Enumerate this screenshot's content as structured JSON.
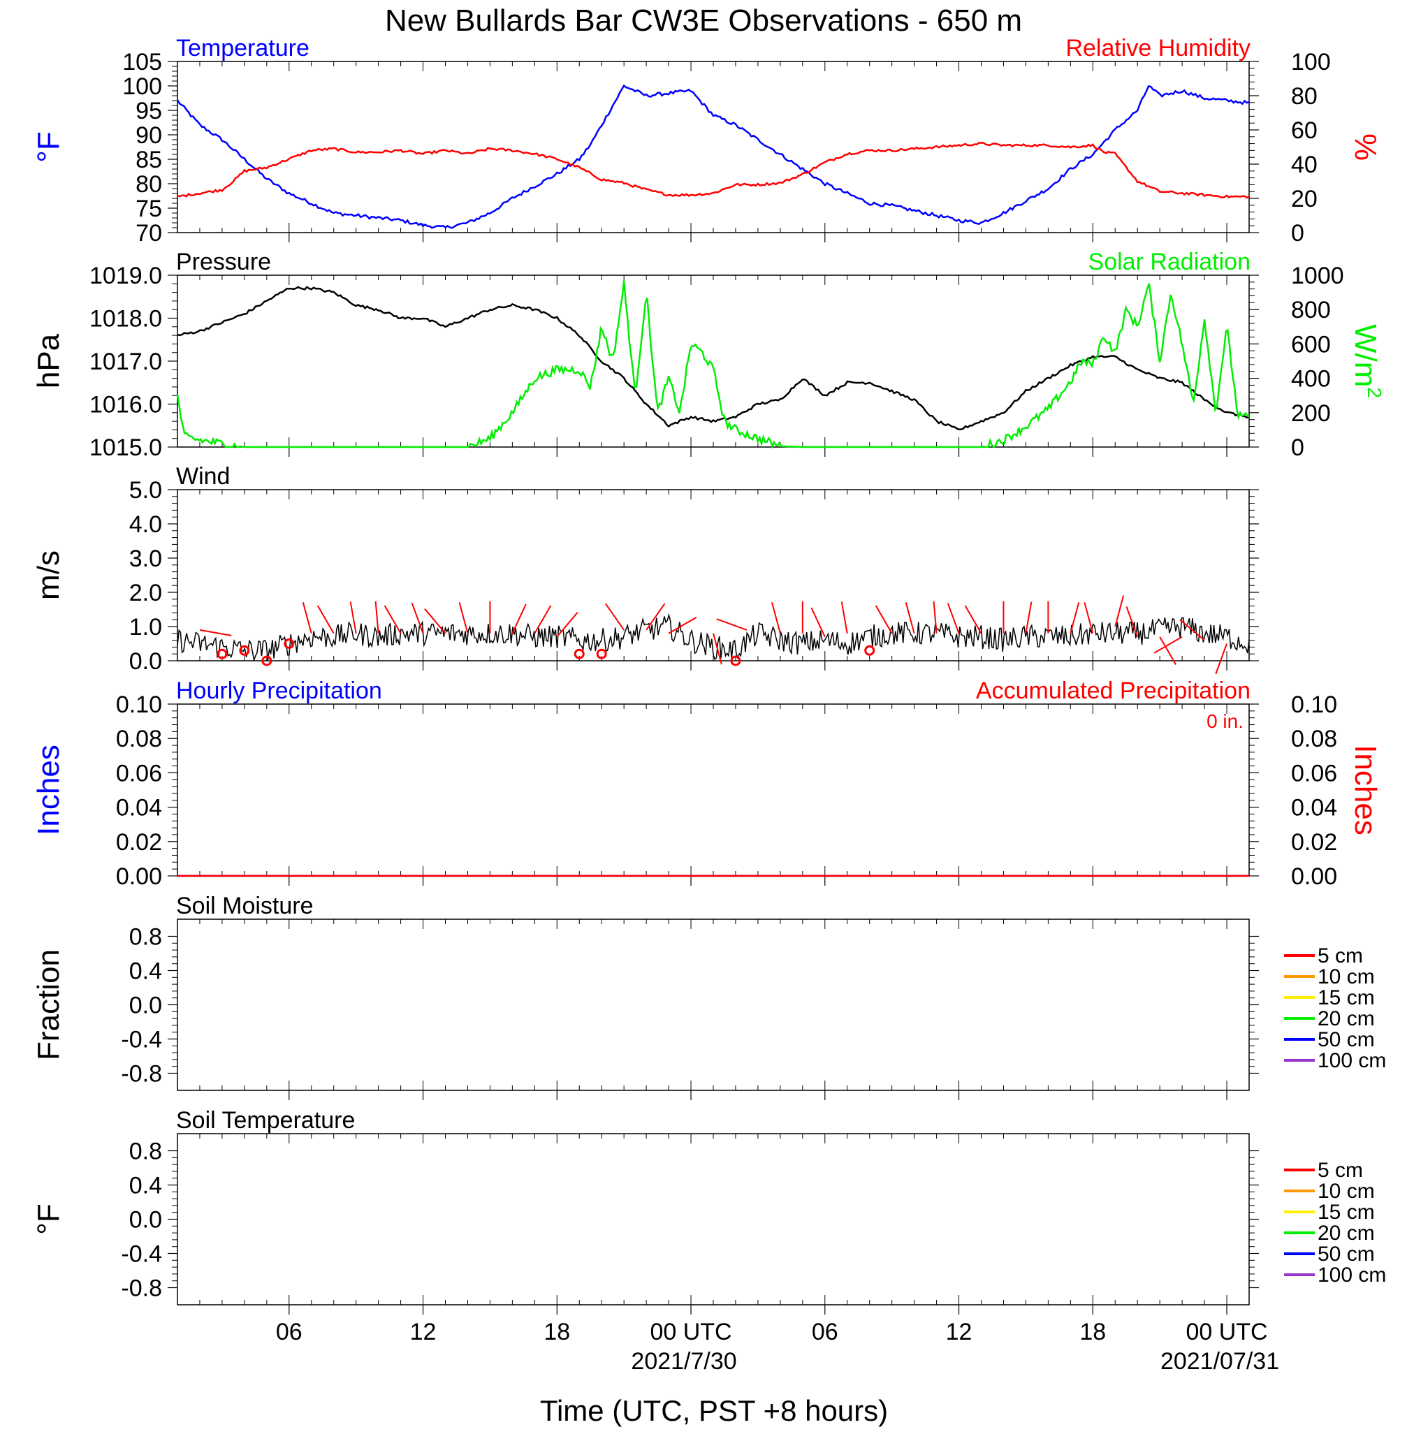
{
  "title": "New Bullards Bar CW3E Observations - 650 m",
  "xlabel": "Time (UTC, PST +8 hours)",
  "colors": {
    "temperature": "#0000ff",
    "humidity": "#ff0000",
    "pressure": "#000000",
    "solar": "#00ee00",
    "wind_speed": "#000000",
    "wind_barb": "#ff0000",
    "precip_hourly": "#0000ff",
    "precip_accum": "#ff0000"
  },
  "x_axis": {
    "range_hours": [
      0,
      48
    ],
    "tick_labels": [
      {
        "hour": 5,
        "label": "06"
      },
      {
        "hour": 11,
        "label": "12"
      },
      {
        "hour": 17,
        "label": "18"
      },
      {
        "hour": 23,
        "label": "00 UTC",
        "sublabel": "2021/7/30"
      },
      {
        "hour": 29,
        "label": "06"
      },
      {
        "hour": 35,
        "label": "12"
      },
      {
        "hour": 41,
        "label": "18"
      },
      {
        "hour": 47,
        "label": "00 UTC",
        "sublabel": "2021/07/31"
      }
    ]
  },
  "chart_data": [
    {
      "type": "line",
      "panel": "temperature_humidity",
      "title_left": "Temperature",
      "title_right": "Relative Humidity",
      "ylabel_left": "°F",
      "ylabel_right": "%",
      "ylim_left": [
        70,
        105
      ],
      "yticks_left": [
        "105",
        "100",
        "95",
        "90",
        "85",
        "80",
        "75",
        "70"
      ],
      "ylim_right": [
        0,
        100
      ],
      "yticks_right": [
        "100",
        "80",
        "60",
        "40",
        "20",
        "0"
      ],
      "series": [
        {
          "name": "Temperature",
          "axis": "left",
          "color": "#0000ff",
          "x": [
            0,
            1,
            2,
            3,
            4,
            5,
            6,
            7,
            8,
            9,
            10,
            11,
            12,
            13,
            14,
            15,
            16,
            17,
            18,
            18.5,
            19,
            19.5,
            20,
            21,
            22,
            23,
            24,
            25,
            26,
            27,
            28,
            29,
            30,
            31,
            32,
            33,
            34,
            35,
            36,
            37,
            38,
            39,
            40,
            41,
            42,
            43,
            43.5,
            44,
            45,
            46,
            47,
            48
          ],
          "y": [
            97,
            92,
            89,
            85,
            81,
            78,
            76,
            74,
            73.5,
            73,
            72.5,
            71.5,
            71,
            72,
            74,
            77,
            79.5,
            82,
            85,
            88,
            92,
            96,
            100,
            98,
            98.5,
            99,
            94,
            92,
            89,
            86,
            83,
            80,
            78,
            76,
            75.5,
            74.5,
            73.5,
            72.5,
            72,
            74,
            76.5,
            79,
            83,
            86,
            91,
            95,
            100,
            98,
            99,
            97.5,
            97,
            96.5
          ]
        },
        {
          "name": "Relative Humidity",
          "axis": "right",
          "color": "#ff0000",
          "x": [
            0,
            1,
            2,
            2.5,
            3,
            4,
            5,
            6,
            7,
            8,
            9,
            10,
            11,
            12,
            13,
            14,
            15,
            16,
            17,
            18,
            19,
            20,
            21,
            22,
            23,
            24,
            25,
            26,
            27,
            28,
            29,
            30,
            31,
            32,
            33,
            34,
            35,
            36,
            37,
            38,
            39,
            40,
            41,
            41.5,
            42,
            43,
            44,
            45,
            46,
            47,
            48
          ],
          "y": [
            21,
            23,
            25,
            30,
            36,
            38,
            43,
            48,
            49,
            47,
            47,
            48,
            46,
            48,
            46,
            49,
            48,
            46,
            43,
            38,
            31,
            29,
            25,
            22,
            22,
            23,
            28,
            28,
            29,
            34,
            41,
            46,
            48,
            48,
            49,
            50,
            51,
            52,
            51,
            51,
            51,
            50,
            51,
            47,
            46,
            30,
            24,
            23,
            22,
            21,
            21
          ]
        }
      ]
    },
    {
      "type": "line",
      "panel": "pressure_solar",
      "title_left": "Pressure",
      "title_right": "Solar Radiation",
      "ylabel_left": "hPa",
      "ylabel_right": "W/m",
      "ylabel_right_sup": "2",
      "ylim_left": [
        1015.0,
        1019.0
      ],
      "yticks_left": [
        "1019.0",
        "1018.0",
        "1017.0",
        "1016.0",
        "1015.0"
      ],
      "ylim_right": [
        0,
        1000
      ],
      "yticks_right": [
        "1000",
        "800",
        "600",
        "400",
        "200",
        "0"
      ],
      "series": [
        {
          "name": "Pressure",
          "axis": "left",
          "color": "#000000",
          "x": [
            0,
            1,
            2,
            3,
            4,
            5,
            6,
            7,
            8,
            9,
            10,
            11,
            12,
            13,
            14,
            15,
            16,
            17,
            18,
            19,
            20,
            21,
            22,
            23,
            24,
            25,
            26,
            27,
            28,
            29,
            30,
            31,
            32,
            33,
            34,
            35,
            36,
            37,
            38,
            39,
            40,
            41,
            42,
            43,
            44,
            45,
            46,
            47,
            48
          ],
          "y": [
            1017.6,
            1017.7,
            1017.9,
            1018.1,
            1018.4,
            1018.7,
            1018.7,
            1018.6,
            1018.3,
            1018.2,
            1018.0,
            1018.0,
            1017.8,
            1018.0,
            1018.2,
            1018.3,
            1018.2,
            1018.0,
            1017.6,
            1017.0,
            1016.6,
            1016.0,
            1015.5,
            1015.7,
            1015.6,
            1015.7,
            1016.0,
            1016.1,
            1016.6,
            1016.2,
            1016.5,
            1016.5,
            1016.3,
            1016.1,
            1015.6,
            1015.4,
            1015.6,
            1015.8,
            1016.3,
            1016.6,
            1016.9,
            1017.1,
            1017.1,
            1016.8,
            1016.6,
            1016.5,
            1016.1,
            1015.8,
            1015.7
          ]
        },
        {
          "name": "Solar Radiation",
          "axis": "right",
          "color": "#00ee00",
          "x": [
            0,
            0.3,
            1,
            2,
            3,
            5,
            8,
            11,
            12,
            13,
            14,
            15,
            16,
            17,
            18,
            18.5,
            19,
            19.5,
            20,
            20.5,
            21,
            21.5,
            22,
            22.5,
            23,
            23.5,
            24,
            24.5,
            25,
            26,
            27,
            28,
            30,
            33,
            34,
            35,
            36,
            37,
            38,
            39,
            40,
            40.5,
            41,
            41.5,
            42,
            42.5,
            43,
            43.5,
            44,
            44.5,
            45,
            45.5,
            46,
            46.5,
            47,
            47.5,
            48
          ],
          "y": [
            300,
            60,
            40,
            20,
            0,
            0,
            0,
            0,
            0,
            0,
            50,
            200,
            400,
            450,
            450,
            350,
            700,
            500,
            950,
            300,
            900,
            200,
            400,
            200,
            600,
            550,
            450,
            150,
            100,
            50,
            5,
            0,
            0,
            0,
            0,
            0,
            0,
            40,
            120,
            220,
            380,
            500,
            480,
            650,
            550,
            800,
            700,
            950,
            500,
            900,
            600,
            250,
            750,
            200,
            700,
            180,
            170
          ]
        }
      ]
    },
    {
      "type": "line",
      "panel": "wind",
      "title_left": "Wind",
      "ylabel_left": "m/s",
      "ylim_left": [
        0,
        5
      ],
      "yticks_left": [
        "5.0",
        "4.0",
        "3.0",
        "2.0",
        "1.0",
        "0.0"
      ],
      "series": [
        {
          "name": "Wind",
          "axis": "left",
          "color": "#000000",
          "x": [
            0,
            1,
            2,
            3,
            4,
            5,
            6,
            7,
            8,
            9,
            10,
            11,
            12,
            13,
            14,
            15,
            16,
            17,
            18,
            19,
            20,
            21,
            22,
            23,
            24,
            25,
            26,
            27,
            28,
            29,
            30,
            31,
            32,
            33,
            34,
            35,
            36,
            37,
            38,
            39,
            40,
            41,
            42,
            43,
            44,
            45,
            46,
            47,
            48
          ],
          "y": [
            0.6,
            0.5,
            0.4,
            0.3,
            0.3,
            0.5,
            0.7,
            0.7,
            0.8,
            0.7,
            0.8,
            0.8,
            0.8,
            0.8,
            0.8,
            0.8,
            0.7,
            0.7,
            0.6,
            0.6,
            0.7,
            0.9,
            1.0,
            0.6,
            0.4,
            0.3,
            0.8,
            0.6,
            0.5,
            0.6,
            0.5,
            0.7,
            0.8,
            0.8,
            0.8,
            0.7,
            0.7,
            0.6,
            0.7,
            0.7,
            0.7,
            0.8,
            0.8,
            0.8,
            0.9,
            1.0,
            0.8,
            0.7,
            0.5
          ]
        }
      ],
      "barbs": [
        {
          "x": 1,
          "speed": 0.9,
          "dir": 100
        },
        {
          "x": 2,
          "speed": 0.2,
          "calm": true
        },
        {
          "x": 3,
          "speed": 0.3,
          "calm": true
        },
        {
          "x": 4,
          "speed": 0.0,
          "calm": true
        },
        {
          "x": 5,
          "speed": 0.5,
          "calm": true
        },
        {
          "x": 6,
          "speed": 0.8,
          "dir": 345
        },
        {
          "x": 7,
          "speed": 0.8,
          "dir": 330
        },
        {
          "x": 8,
          "speed": 0.8,
          "dir": 350
        },
        {
          "x": 9,
          "speed": 0.8,
          "dir": 355
        },
        {
          "x": 10,
          "speed": 0.8,
          "dir": 330
        },
        {
          "x": 11,
          "speed": 0.8,
          "dir": 340
        },
        {
          "x": 12,
          "speed": 0.8,
          "dir": 320
        },
        {
          "x": 13,
          "speed": 0.8,
          "dir": 345
        },
        {
          "x": 14,
          "speed": 0.8,
          "dir": 0
        },
        {
          "x": 15,
          "speed": 0.8,
          "dir": 25
        },
        {
          "x": 16,
          "speed": 0.8,
          "dir": 30
        },
        {
          "x": 17,
          "speed": 0.7,
          "dir": 40
        },
        {
          "x": 18,
          "speed": 0.2,
          "calm": true
        },
        {
          "x": 19,
          "speed": 0.2,
          "calm": true
        },
        {
          "x": 20,
          "speed": 0.9,
          "dir": 325
        },
        {
          "x": 21,
          "speed": 0.9,
          "dir": 35
        },
        {
          "x": 22,
          "speed": 0.8,
          "dir": 60
        },
        {
          "x": 24,
          "speed": 0.8,
          "dir": 165
        },
        {
          "x": 25,
          "speed": 0.0,
          "calm": true
        },
        {
          "x": 25.5,
          "speed": 0.9,
          "dir": 290
        },
        {
          "x": 27,
          "speed": 0.8,
          "dir": 345
        },
        {
          "x": 28,
          "speed": 0.8,
          "dir": 0
        },
        {
          "x": 29,
          "speed": 0.7,
          "dir": 335
        },
        {
          "x": 30,
          "speed": 0.8,
          "dir": 350
        },
        {
          "x": 31,
          "speed": 0.3,
          "calm": true
        },
        {
          "x": 32,
          "speed": 0.8,
          "dir": 330
        },
        {
          "x": 33,
          "speed": 0.8,
          "dir": 345
        },
        {
          "x": 34,
          "speed": 0.8,
          "dir": 355
        },
        {
          "x": 35,
          "speed": 0.8,
          "dir": 340
        },
        {
          "x": 36,
          "speed": 0.8,
          "dir": 330
        },
        {
          "x": 37,
          "speed": 0.8,
          "dir": 0
        },
        {
          "x": 38,
          "speed": 0.8,
          "dir": 10
        },
        {
          "x": 39,
          "speed": 0.8,
          "dir": 0
        },
        {
          "x": 40,
          "speed": 0.8,
          "dir": 15
        },
        {
          "x": 41,
          "speed": 0.8,
          "dir": 345
        },
        {
          "x": 42,
          "speed": 1.0,
          "dir": 15
        },
        {
          "x": 43,
          "speed": 0.7,
          "dir": 340
        },
        {
          "x": 44,
          "speed": 0.7,
          "dir": 150
        },
        {
          "x": 45,
          "speed": 0.7,
          "dir": 240
        },
        {
          "x": 46,
          "speed": 0.6,
          "dir": 310
        },
        {
          "x": 47,
          "speed": 0.5,
          "dir": 200
        }
      ]
    },
    {
      "type": "line",
      "panel": "precipitation",
      "title_left": "Hourly Precipitation",
      "title_right": "Accumulated Precipitation",
      "annotation": "0 in.",
      "ylabel_left": "Inches",
      "ylabel_right": "Inches",
      "ylim_left": [
        0,
        0.1
      ],
      "yticks_left": [
        "0.10",
        "0.08",
        "0.06",
        "0.04",
        "0.02",
        "0.00"
      ],
      "ylim_right": [
        0,
        0.1
      ],
      "yticks_right": [
        "0.10",
        "0.08",
        "0.06",
        "0.04",
        "0.02",
        "0.00"
      ],
      "series": [
        {
          "name": "Hourly Precipitation",
          "axis": "left",
          "color": "#0000ff",
          "x": [
            0,
            48
          ],
          "y": [
            0,
            0
          ]
        },
        {
          "name": "Accumulated Precipitation",
          "axis": "right",
          "color": "#ff0000",
          "x": [
            0,
            48
          ],
          "y": [
            0,
            0
          ]
        }
      ]
    },
    {
      "type": "line",
      "panel": "soil_moisture",
      "title_left": "Soil Moisture",
      "ylabel_left": "Fraction",
      "ylim_left": [
        -1,
        1
      ],
      "yticks_left": [
        "0.8",
        "0.4",
        "0.0",
        "-0.4",
        "-0.8"
      ],
      "legend": [
        {
          "name": "5 cm",
          "color": "#ff0000"
        },
        {
          "name": "10 cm",
          "color": "#ff9900"
        },
        {
          "name": "15 cm",
          "color": "#ffee00"
        },
        {
          "name": "20 cm",
          "color": "#00ee00"
        },
        {
          "name": "50 cm",
          "color": "#0000ff"
        },
        {
          "name": "100 cm",
          "color": "#9933cc"
        }
      ],
      "series": []
    },
    {
      "type": "line",
      "panel": "soil_temperature",
      "title_left": "Soil Temperature",
      "ylabel_left": "°F",
      "ylim_left": [
        -1,
        1
      ],
      "yticks_left": [
        "0.8",
        "0.4",
        "0.0",
        "-0.4",
        "-0.8"
      ],
      "legend": [
        {
          "name": "5 cm",
          "color": "#ff0000"
        },
        {
          "name": "10 cm",
          "color": "#ff9900"
        },
        {
          "name": "15 cm",
          "color": "#ffee00"
        },
        {
          "name": "20 cm",
          "color": "#00ee00"
        },
        {
          "name": "50 cm",
          "color": "#0000ff"
        },
        {
          "name": "100 cm",
          "color": "#9933cc"
        }
      ],
      "series": []
    }
  ]
}
